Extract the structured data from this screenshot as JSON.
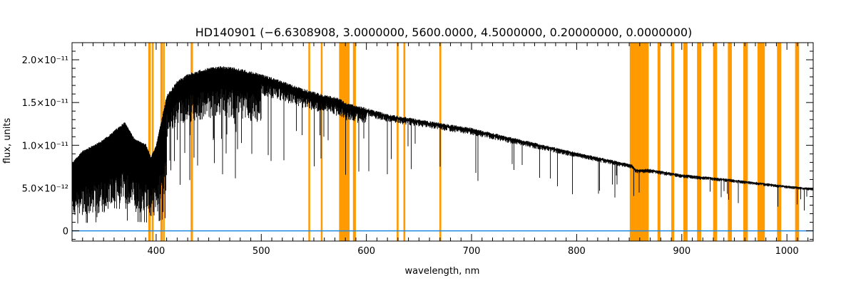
{
  "chart_data": {
    "type": "line",
    "title": "HD140901   (−6.6308908, 3.0000000, 5600.0000, 4.5000000, 0.20000000, 0.0000000)",
    "xlabel": "wavelength, nm",
    "ylabel": "flux, units",
    "xlim": [
      320,
      1025
    ],
    "ylim": [
      -1.2e-12,
      2.2e-11
    ],
    "x_ticks": [
      {
        "value": 400,
        "label": "400"
      },
      {
        "value": 500,
        "label": "500"
      },
      {
        "value": 600,
        "label": "600"
      },
      {
        "value": 700,
        "label": "700"
      },
      {
        "value": 800,
        "label": "800"
      },
      {
        "value": 900,
        "label": "900"
      },
      {
        "value": 1000,
        "label": "1000"
      }
    ],
    "y_ticks": [
      {
        "value": 0,
        "label": "0"
      },
      {
        "value": 5e-12,
        "label": "5.0×10⁻¹²"
      },
      {
        "value": 1e-11,
        "label": "1.0×10⁻¹¹"
      },
      {
        "value": 1.5e-11,
        "label": "1.5×10⁻¹¹"
      },
      {
        "value": 2e-11,
        "label": "2.0×10⁻¹¹"
      }
    ],
    "grid": false,
    "colors": {
      "spectrum": "#000000",
      "masks": "#ff9a00",
      "baseline": "#1e88e5"
    },
    "series": [
      {
        "x": [
          320,
          330,
          340,
          350,
          360,
          370,
          380,
          390,
          395,
          400,
          410,
          420,
          430,
          440,
          450,
          460,
          470,
          480,
          490,
          500,
          520,
          540,
          560,
          575,
          580,
          600,
          620,
          650,
          700,
          750,
          800,
          850,
          853,
          856,
          870,
          900,
          950,
          1000,
          1025
        ],
        "y": [
          7.8e-12,
          9.2e-12,
          9.8e-12,
          1.05e-11,
          1.15e-11,
          1.25e-11,
          1.05e-11,
          1e-11,
          8.5e-12,
          9.8e-12,
          1.55e-11,
          1.72e-11,
          1.8e-11,
          1.84e-11,
          1.87e-11,
          1.89e-11,
          1.88e-11,
          1.86e-11,
          1.83e-11,
          1.8e-11,
          1.72e-11,
          1.63e-11,
          1.56e-11,
          1.52e-11,
          1.47e-11,
          1.41e-11,
          1.34e-11,
          1.28e-11,
          1.18e-11,
          1.04e-11,
          9e-12,
          7.7e-12,
          7.6e-12,
          7.1e-12,
          7.1e-12,
          6.5e-12,
          5.9e-12,
          5.2e-12,
          4.9e-12
        ]
      },
      {
        "x": [
          320,
          1025
        ],
        "y": [
          0,
          0
        ]
      }
    ],
    "mask_bands": [
      [
        392.5,
        394.8
      ],
      [
        395.8,
        397.6
      ],
      [
        404.0,
        406.5
      ],
      [
        406.8,
        408.0
      ],
      [
        432.8,
        435.0
      ],
      [
        544.8,
        546.5
      ],
      [
        556.6,
        558.3
      ],
      [
        574.0,
        584.0
      ],
      [
        587.2,
        590.0
      ],
      [
        628.8,
        630.6
      ],
      [
        635.2,
        637.0
      ],
      [
        669.4,
        671.2
      ],
      [
        850.5,
        868.5
      ],
      [
        876.9,
        879.7
      ],
      [
        890.0,
        892.8
      ],
      [
        901.5,
        905.5
      ],
      [
        914.5,
        918.5
      ],
      [
        929.8,
        933.6
      ],
      [
        943.8,
        947.6
      ],
      [
        958.5,
        962.8
      ],
      [
        972.0,
        979.0
      ],
      [
        990.6,
        994.6
      ],
      [
        1007.8,
        1011.6
      ]
    ]
  }
}
